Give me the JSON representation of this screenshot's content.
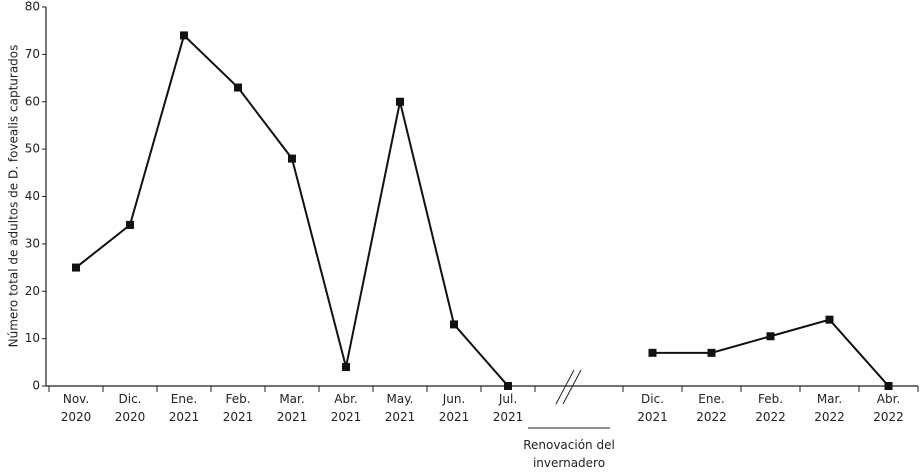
{
  "chart_data": {
    "type": "line",
    "y_label": "Número total de adultos de D. fovealis capturados",
    "categories": [
      "Nov. 2020",
      "Dic. 2020",
      "Ene. 2021",
      "Feb. 2021",
      "Mar. 2021",
      "Abr. 2021",
      "May. 2021",
      "Jun. 2021",
      "Jul. 2021",
      null,
      "Dic. 2021",
      "Ene. 2022",
      "Feb. 2022",
      "Mar. 2022",
      "Abr. 2022"
    ],
    "values": [
      25,
      34,
      74,
      63,
      48,
      4,
      60,
      13,
      0,
      null,
      7,
      7,
      10.5,
      14,
      0
    ],
    "break_label": "Renovación del invernadero",
    "color": "#111111",
    "ylim": [
      0,
      80
    ],
    "yticks": [
      0,
      10,
      20,
      30,
      40,
      50,
      60,
      70,
      80
    ],
    "grid": false
  }
}
